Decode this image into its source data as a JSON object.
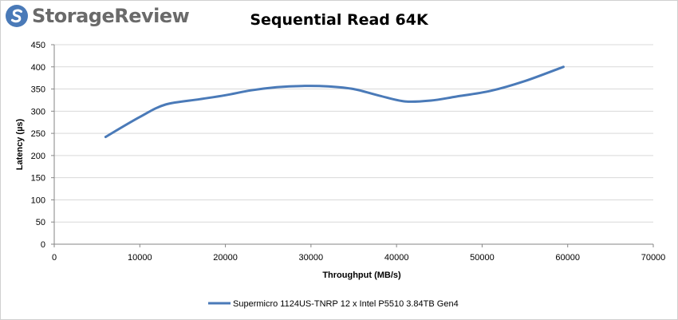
{
  "brand": {
    "name": "StorageReview",
    "accent": "#4a7ab8"
  },
  "chart_data": {
    "type": "line",
    "title": "Sequential Read 64K",
    "xlabel": "Throughput (MB/s)",
    "ylabel": "Latency (µs)",
    "xlim": [
      0,
      70000
    ],
    "ylim": [
      0,
      450
    ],
    "xticks": [
      0,
      10000,
      20000,
      30000,
      40000,
      50000,
      60000,
      70000
    ],
    "yticks": [
      0,
      50,
      100,
      150,
      200,
      250,
      300,
      350,
      400,
      450
    ],
    "grid": "horizontal",
    "legend": "bottom",
    "smooth": true,
    "series": [
      {
        "name": "Supermicro 1124US-TNRP 12 x Intel P5510 3.84TB Gen4",
        "color": "#4a7ab8",
        "x": [
          6000,
          10000,
          13000,
          17000,
          20000,
          23000,
          26000,
          29000,
          32000,
          35000,
          38000,
          41000,
          44000,
          47000,
          51000,
          55000,
          59500
        ],
        "y": [
          242,
          287,
          315,
          327,
          336,
          347,
          354,
          357,
          356,
          350,
          335,
          322,
          324,
          333,
          346,
          368,
          400
        ]
      }
    ]
  }
}
